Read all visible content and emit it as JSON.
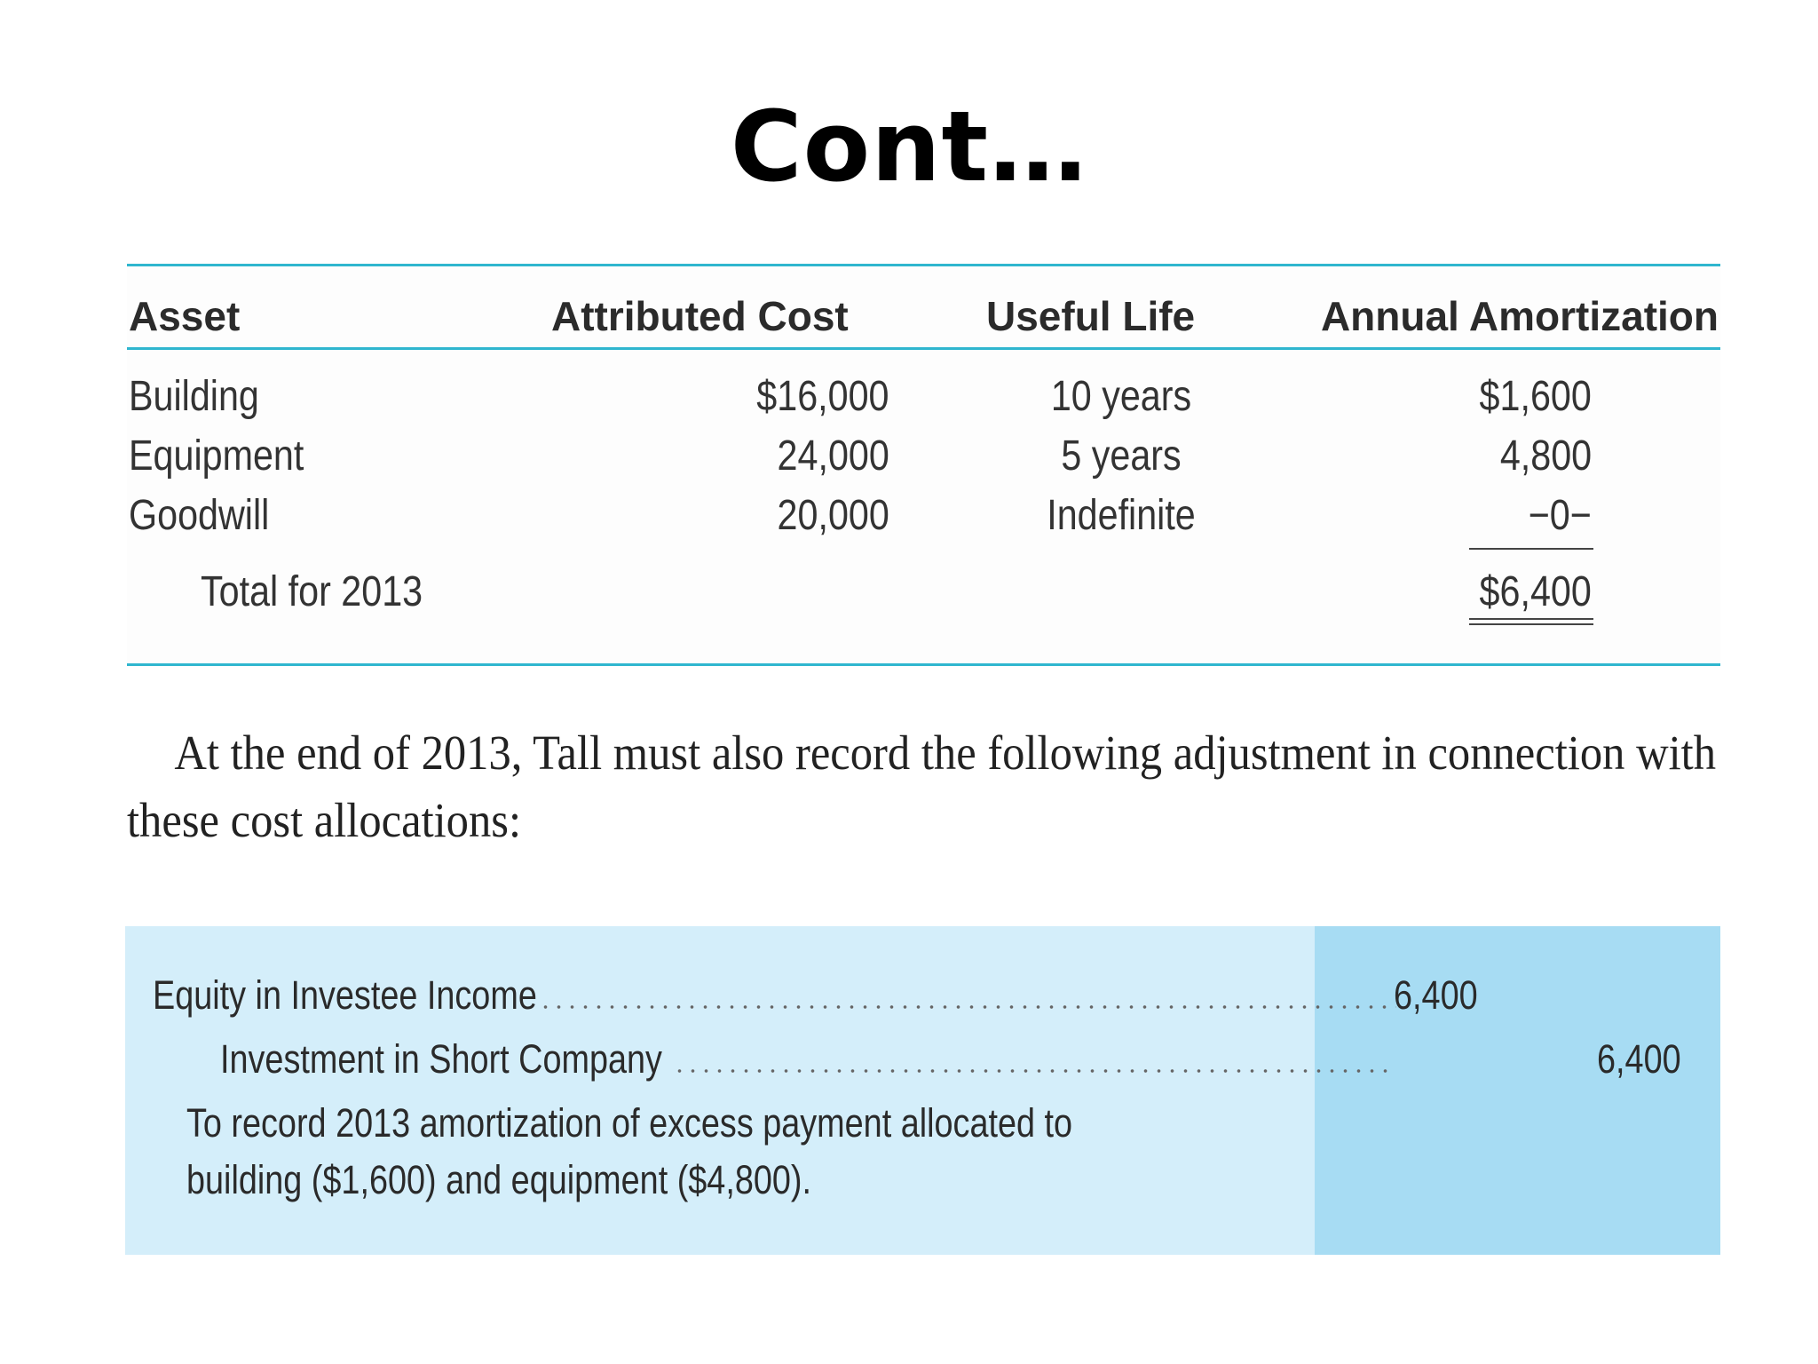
{
  "title": "Cont…",
  "table": {
    "headers": {
      "asset": "Asset",
      "attributed_cost": "Attributed Cost",
      "useful_life": "Useful Life",
      "annual_amortization": "Annual Amortization"
    },
    "rows": [
      {
        "asset": "Building",
        "attributed_cost": "$16,000",
        "useful_life": "10 years",
        "annual_amortization": "$1,600"
      },
      {
        "asset": "Equipment",
        "attributed_cost": "24,000",
        "useful_life": "5 years",
        "annual_amortization": "4,800"
      },
      {
        "asset": "Goodwill",
        "attributed_cost": "20,000",
        "useful_life": "Indefinite",
        "annual_amortization": "−0−"
      }
    ],
    "total": {
      "label": "Total for 2013",
      "annual_amortization": "$6,400"
    }
  },
  "paragraph": {
    "line1": "At the end of 2013, Tall must also record the following adjustment in connection with",
    "line2": "these cost allocations:"
  },
  "journal_entry": {
    "debit_account": "Equity in Investee Income",
    "debit_amount": "6,400",
    "credit_account": "Investment in Short Company",
    "credit_amount": "6,400",
    "explanation_line1": "To record 2013 amortization of excess payment allocated to",
    "explanation_line2": "building ($1,600) and equipment ($4,800)."
  }
}
